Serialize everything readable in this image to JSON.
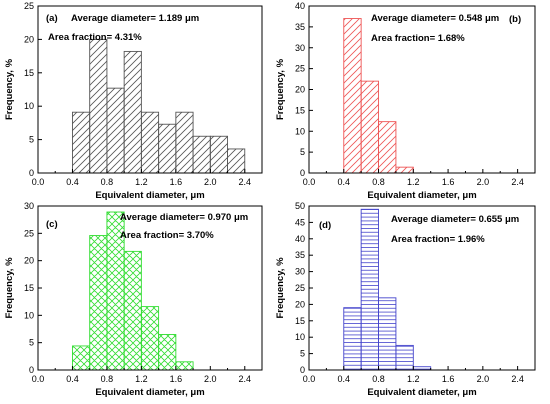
{
  "chart_data": [
    {
      "type": "bar",
      "panel_label": "(a)",
      "annotations": [
        "Average diameter= 1.189 μm",
        "Area fraction= 4.31%"
      ],
      "xlabel": "Equivalent diameter, μm",
      "ylabel": "Frequency, %",
      "xlim": [
        0,
        2.6
      ],
      "ylim": [
        0,
        25
      ],
      "xticks": [
        "0.0",
        "0.4",
        "0.8",
        "1.2",
        "1.6",
        "2.0",
        "2.4"
      ],
      "yticks": [
        "0",
        "5",
        "10",
        "15",
        "20",
        "25"
      ],
      "bin_width": 0.2,
      "x": [
        0.5,
        0.7,
        0.9,
        1.1,
        1.3,
        1.5,
        1.7,
        1.9,
        2.1,
        2.3
      ],
      "values": [
        9.1,
        20.0,
        12.7,
        18.2,
        9.1,
        7.3,
        9.1,
        5.5,
        5.5,
        3.6
      ],
      "color": "#555555",
      "pattern": "diagonal"
    },
    {
      "type": "bar",
      "panel_label": "(b)",
      "annotations": [
        "Average diameter= 0.548 μm",
        "Area fraction= 1.68%"
      ],
      "xlabel": "Equivalent diameter, μm",
      "ylabel": "Frequency, %",
      "xlim": [
        0,
        2.6
      ],
      "ylim": [
        0,
        40
      ],
      "xticks": [
        "0.0",
        "0.4",
        "0.8",
        "1.2",
        "1.6",
        "2.0",
        "2.4"
      ],
      "yticks": [
        "0",
        "5",
        "10",
        "15",
        "20",
        "25",
        "30",
        "35",
        "40"
      ],
      "bin_width": 0.2,
      "x": [
        0.5,
        0.7,
        0.9,
        1.1
      ],
      "values": [
        37.0,
        22.0,
        12.3,
        1.4
      ],
      "color": "#ee5555",
      "pattern": "diagonal"
    },
    {
      "type": "bar",
      "panel_label": "(c)",
      "annotations": [
        "Average diameter= 0.970 μm",
        "Area fraction= 3.70%"
      ],
      "xlabel": "Equivalent diameter, μm",
      "ylabel": "Frequency, %",
      "xlim": [
        0,
        2.6
      ],
      "ylim": [
        0,
        30
      ],
      "xticks": [
        "0.0",
        "0.4",
        "0.8",
        "1.2",
        "1.6",
        "2.0",
        "2.4"
      ],
      "yticks": [
        "0",
        "5",
        "10",
        "15",
        "20",
        "25",
        "30"
      ],
      "bin_width": 0.2,
      "x": [
        0.5,
        0.7,
        0.9,
        1.1,
        1.3,
        1.5,
        1.7
      ],
      "values": [
        4.4,
        24.6,
        28.9,
        21.7,
        11.6,
        6.5,
        1.5
      ],
      "color": "#33dd33",
      "pattern": "crosshatch"
    },
    {
      "type": "bar",
      "panel_label": "(d)",
      "annotations": [
        "Average diameter= 0.655 μm",
        "Area fraction= 1.96%"
      ],
      "xlabel": "Equivalent diameter, μm",
      "ylabel": "Frequency, %",
      "xlim": [
        0,
        2.6
      ],
      "ylim": [
        0,
        50
      ],
      "xticks": [
        "0.0",
        "0.4",
        "0.8",
        "1.2",
        "1.6",
        "2.0",
        "2.4"
      ],
      "yticks": [
        "0",
        "5",
        "10",
        "15",
        "20",
        "25",
        "30",
        "35",
        "40",
        "45",
        "50"
      ],
      "bin_width": 0.2,
      "x": [
        0.5,
        0.7,
        0.9,
        1.1,
        1.3
      ],
      "values": [
        19.0,
        49.0,
        22.0,
        7.5,
        1.0
      ],
      "color": "#4444cc",
      "pattern": "horizontal"
    }
  ]
}
